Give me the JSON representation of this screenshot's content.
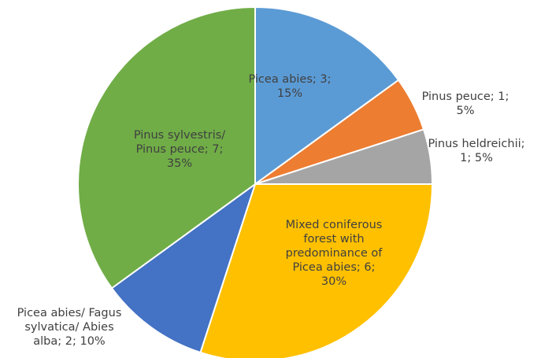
{
  "chart_data": {
    "type": "pie",
    "title": "",
    "slices": [
      {
        "name": "Picea abies",
        "value": 3,
        "percent": "15%",
        "color": "#5B9BD5",
        "label_lines": [
          "Picea abies; 3;",
          "15%"
        ]
      },
      {
        "name": "Pinus peuce",
        "value": 1,
        "percent": "5%",
        "color": "#ED7D31",
        "label_lines": [
          "Pinus peuce; 1;",
          "5%"
        ]
      },
      {
        "name": "Pinus heldreichii",
        "value": 1,
        "percent": "5%",
        "color": "#A5A5A5",
        "label_lines": [
          "Pinus heldreichii;",
          "1; 5%"
        ]
      },
      {
        "name": "Mixed coniferous forest with predominance of Picea abies",
        "value": 6,
        "percent": "30%",
        "color": "#FFC000",
        "label_lines": [
          "Mixed coniferous",
          "forest with",
          "predominance of",
          "Picea abies; 6;",
          "30%"
        ]
      },
      {
        "name": "Picea abies/ Fagus sylvatica/ Abies alba",
        "value": 2,
        "percent": "10%",
        "color": "#4472C4",
        "label_lines": [
          "Picea abies/ Fagus",
          "sylvatica/ Abies",
          "alba; 2; 10%"
        ]
      },
      {
        "name": "Pinus sylvestris/ Pinus peuce",
        "value": 7,
        "percent": "35%",
        "color": "#70AD47",
        "label_lines": [
          "Pinus sylvestris/",
          "Pinus peuce; 7;",
          "35%"
        ]
      }
    ]
  }
}
